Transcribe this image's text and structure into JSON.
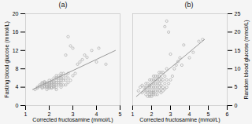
{
  "chart_data": [
    {
      "type": "scatter",
      "title": "(a)",
      "xlabel": "Corrected fructosamine (mmol/L)",
      "ylabel": "Fasting blood glucose (mmol/L)",
      "xlim": [
        1,
        5
      ],
      "ylim": [
        0,
        20
      ],
      "xticks": [
        1,
        2,
        3,
        4,
        5
      ],
      "yticks": [
        0,
        4,
        8,
        12,
        16,
        20
      ],
      "grid": false,
      "series": [
        {
          "type": "scatter",
          "color": "#aaaaaa",
          "marker": "circle",
          "x": [
            1.4,
            1.5,
            1.5,
            1.6,
            1.6,
            1.7,
            1.7,
            1.7,
            1.7,
            1.8,
            1.8,
            1.8,
            1.8,
            1.8,
            1.8,
            1.9,
            1.9,
            1.9,
            1.9,
            1.9,
            2.0,
            2.0,
            2.0,
            2.0,
            2.0,
            2.0,
            2.0,
            2.1,
            2.1,
            2.1,
            2.1,
            2.1,
            2.1,
            2.2,
            2.2,
            2.2,
            2.2,
            2.2,
            2.2,
            2.3,
            2.3,
            2.3,
            2.3,
            2.3,
            2.3,
            2.3,
            2.4,
            2.4,
            2.4,
            2.4,
            2.4,
            2.5,
            2.5,
            2.5,
            2.5,
            2.5,
            2.5,
            2.5,
            2.6,
            2.6,
            2.6,
            2.6,
            2.7,
            2.7,
            2.7,
            2.7,
            2.8,
            2.8,
            2.8,
            2.8,
            2.9,
            2.9,
            3.0,
            3.0,
            3.1,
            3.2,
            3.3,
            3.4,
            3.5,
            3.6,
            3.8,
            4.0,
            4.1,
            4.4
          ],
          "values": [
            3.5,
            4.0,
            3.8,
            4.2,
            4.5,
            3.8,
            4.0,
            4.8,
            5.0,
            4.0,
            4.2,
            4.5,
            4.8,
            5.0,
            5.2,
            3.5,
            4.0,
            4.2,
            4.5,
            5.0,
            3.8,
            4.0,
            4.2,
            4.5,
            4.8,
            5.0,
            5.5,
            3.8,
            4.0,
            4.5,
            4.8,
            5.0,
            5.5,
            4.0,
            4.2,
            4.5,
            5.0,
            5.2,
            6.0,
            3.5,
            4.0,
            4.5,
            5.0,
            5.5,
            6.0,
            6.5,
            4.5,
            5.0,
            5.5,
            6.0,
            6.5,
            4.0,
            4.5,
            5.0,
            5.5,
            6.0,
            6.5,
            7.0,
            4.5,
            5.5,
            6.0,
            7.0,
            4.5,
            5.5,
            6.5,
            11.0,
            5.0,
            6.0,
            7.0,
            15.0,
            5.5,
            13.0,
            6.5,
            12.5,
            7.0,
            9.0,
            9.5,
            10.0,
            11.0,
            10.5,
            12.0,
            9.5,
            12.5,
            9.0
          ]
        },
        {
          "type": "line",
          "color": "#999999",
          "line_style": "solid",
          "x": [
            1.3,
            4.8
          ],
          "values": [
            3.5,
            12.0
          ]
        }
      ]
    },
    {
      "type": "scatter",
      "title": "(b)",
      "xlabel": "Corrected fructosamine (mmol/L)",
      "ylabel": "Random blood glucose (mmol/L)",
      "xlim": [
        1,
        6
      ],
      "ylim": [
        0,
        25
      ],
      "xticks": [
        1,
        2,
        3,
        4,
        5,
        6
      ],
      "yticks": [
        0,
        5,
        10,
        15,
        20,
        25
      ],
      "grid": false,
      "series": [
        {
          "type": "scatter",
          "color": "#aaaaaa",
          "marker": "circle",
          "x": [
            1.3,
            1.4,
            1.5,
            1.5,
            1.6,
            1.6,
            1.7,
            1.7,
            1.7,
            1.7,
            1.8,
            1.8,
            1.8,
            1.8,
            1.8,
            1.9,
            1.9,
            1.9,
            1.9,
            1.9,
            1.9,
            2.0,
            2.0,
            2.0,
            2.0,
            2.0,
            2.0,
            2.0,
            2.1,
            2.1,
            2.1,
            2.1,
            2.1,
            2.1,
            2.1,
            2.2,
            2.2,
            2.2,
            2.2,
            2.2,
            2.2,
            2.3,
            2.3,
            2.3,
            2.3,
            2.3,
            2.3,
            2.4,
            2.4,
            2.4,
            2.4,
            2.4,
            2.4,
            2.5,
            2.5,
            2.5,
            2.5,
            2.5,
            2.5,
            2.6,
            2.6,
            2.6,
            2.6,
            2.7,
            2.7,
            2.7,
            2.7,
            2.8,
            2.8,
            2.8,
            2.8,
            2.9,
            2.9,
            3.0,
            3.0,
            3.1,
            3.2,
            3.3,
            3.4,
            3.5,
            3.6,
            3.7,
            4.0,
            4.2,
            4.5,
            4.7
          ],
          "values": [
            4.0,
            5.0,
            3.5,
            5.5,
            4.0,
            5.0,
            3.0,
            4.0,
            5.0,
            6.0,
            2.5,
            3.5,
            4.0,
            5.0,
            6.0,
            2.5,
            3.0,
            4.0,
            5.0,
            5.5,
            7.0,
            2.5,
            3.0,
            3.5,
            4.0,
            5.0,
            6.0,
            7.0,
            3.0,
            3.5,
            4.0,
            5.0,
            6.0,
            7.0,
            8.0,
            3.0,
            4.0,
            5.0,
            6.0,
            7.0,
            8.0,
            3.0,
            4.0,
            5.0,
            6.0,
            7.0,
            8.0,
            4.0,
            5.0,
            6.0,
            7.0,
            8.0,
            9.0,
            3.5,
            4.5,
            5.5,
            6.5,
            7.5,
            9.0,
            4.0,
            5.0,
            7.0,
            9.0,
            4.5,
            6.0,
            8.0,
            21.5,
            5.0,
            7.0,
            10.0,
            23.0,
            6.0,
            20.0,
            7.0,
            14.0,
            8.0,
            10.0,
            11.0,
            12.0,
            13.0,
            11.0,
            16.5,
            13.0,
            14.5,
            17.5,
            18.0
          ]
        },
        {
          "type": "line",
          "color": "#999999",
          "line_style": "solid",
          "x": [
            1.2,
            4.8
          ],
          "values": [
            2.5,
            18.0
          ]
        }
      ]
    }
  ]
}
